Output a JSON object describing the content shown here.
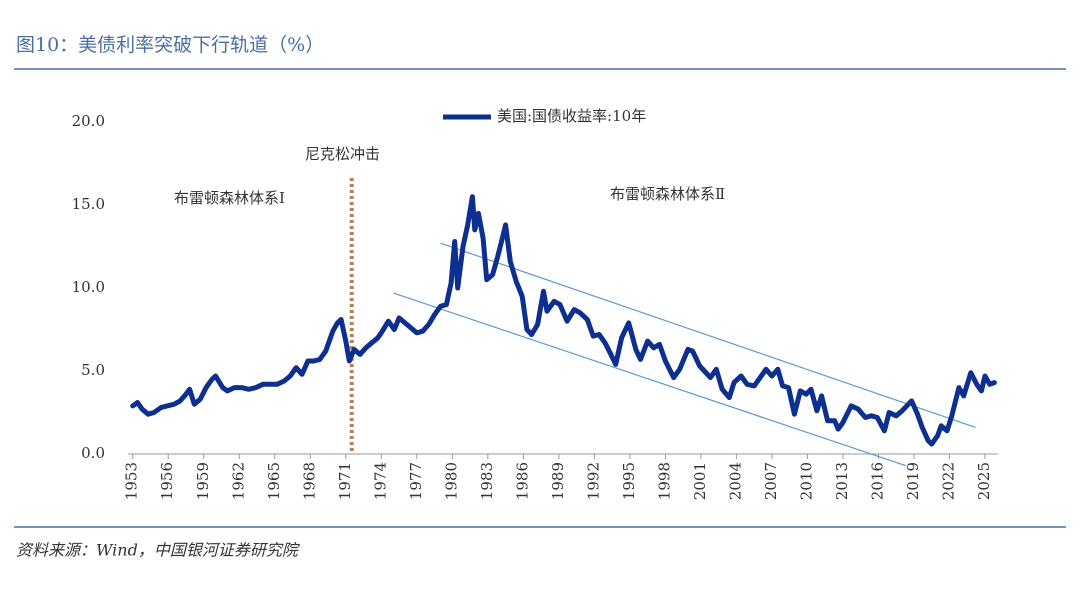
{
  "page": {
    "title": "图10：美债利率突破下行轨道（%）",
    "source": "资料来源：Wind，中国银河证券研究院"
  },
  "chart_data": {
    "type": "line",
    "series": [
      {
        "name": "美国:国债收益率:10年",
        "color": "#0d2f8f",
        "x": [
          1953.0,
          1953.4,
          1953.8,
          1954.3,
          1954.8,
          1955.4,
          1955.9,
          1956.5,
          1957.0,
          1957.5,
          1957.8,
          1958.2,
          1958.7,
          1959.2,
          1959.7,
          1960.0,
          1960.6,
          1961.0,
          1961.6,
          1962.2,
          1962.8,
          1963.4,
          1964.0,
          1964.6,
          1965.2,
          1965.8,
          1966.3,
          1966.8,
          1967.3,
          1967.8,
          1968.3,
          1968.8,
          1969.3,
          1969.9,
          1970.3,
          1970.6,
          1971.0,
          1971.3,
          1971.7,
          1972.2,
          1972.7,
          1973.2,
          1973.7,
          1974.0,
          1974.6,
          1975.1,
          1975.5,
          1976.0,
          1976.5,
          1977.0,
          1977.5,
          1978.0,
          1978.5,
          1979.0,
          1979.5,
          1979.9,
          1980.2,
          1980.45,
          1980.9,
          1981.3,
          1981.7,
          1981.9,
          1982.2,
          1982.6,
          1982.9,
          1983.4,
          1983.8,
          1984.3,
          1984.5,
          1984.9,
          1985.4,
          1985.9,
          1986.3,
          1986.7,
          1987.2,
          1987.7,
          1988.0,
          1988.6,
          1989.1,
          1989.7,
          1990.3,
          1990.8,
          1991.4,
          1991.9,
          1992.4,
          1992.9,
          1993.4,
          1993.8,
          1994.3,
          1994.9,
          1995.5,
          1995.9,
          1996.5,
          1997.0,
          1997.5,
          1998.0,
          1998.7,
          1999.2,
          1999.9,
          2000.3,
          2000.9,
          2001.3,
          2001.8,
          2002.3,
          2002.8,
          2003.4,
          2003.8,
          2004.4,
          2004.9,
          2005.5,
          2005.9,
          2006.5,
          2007.0,
          2007.5,
          2007.9,
          2008.4,
          2008.9,
          2009.4,
          2009.9,
          2010.3,
          2010.8,
          2011.2,
          2011.7,
          2012.3,
          2012.6,
          2013.0,
          2013.7,
          2014.3,
          2014.9,
          2015.4,
          2015.9,
          2016.5,
          2016.9,
          2017.5,
          2018.0,
          2018.8,
          2019.3,
          2019.7,
          2020.2,
          2020.5,
          2021.0,
          2021.3,
          2021.8,
          2022.2,
          2022.8,
          2023.2,
          2023.8,
          2024.3,
          2024.7,
          2025.0,
          2025.4,
          2025.8
        ],
        "values": [
          2.9,
          3.1,
          2.7,
          2.4,
          2.5,
          2.8,
          2.9,
          3.0,
          3.2,
          3.6,
          3.9,
          3.0,
          3.3,
          4.0,
          4.5,
          4.7,
          4.0,
          3.8,
          4.0,
          4.0,
          3.9,
          4.0,
          4.2,
          4.2,
          4.2,
          4.4,
          4.7,
          5.2,
          4.8,
          5.6,
          5.6,
          5.7,
          6.2,
          7.4,
          7.9,
          8.1,
          6.8,
          5.6,
          6.3,
          6.0,
          6.4,
          6.7,
          7.0,
          7.3,
          8.0,
          7.5,
          8.2,
          7.9,
          7.6,
          7.3,
          7.4,
          7.8,
          8.4,
          8.9,
          9.0,
          10.3,
          12.8,
          10.0,
          12.5,
          13.8,
          15.5,
          13.5,
          14.5,
          13.0,
          10.5,
          10.8,
          11.8,
          13.2,
          13.8,
          11.6,
          10.4,
          9.5,
          7.5,
          7.2,
          7.8,
          9.8,
          8.6,
          9.2,
          9.0,
          8.0,
          8.7,
          8.5,
          8.1,
          7.1,
          7.2,
          6.7,
          6.0,
          5.4,
          7.0,
          7.9,
          6.3,
          5.7,
          6.8,
          6.4,
          6.6,
          5.6,
          4.6,
          5.1,
          6.3,
          6.2,
          5.3,
          5.0,
          4.6,
          5.1,
          3.9,
          3.4,
          4.3,
          4.7,
          4.2,
          4.1,
          4.5,
          5.1,
          4.7,
          5.1,
          4.1,
          4.0,
          2.4,
          3.8,
          3.6,
          3.9,
          2.6,
          3.5,
          2.0,
          2.0,
          1.5,
          1.9,
          2.9,
          2.7,
          2.2,
          2.3,
          2.2,
          1.4,
          2.5,
          2.3,
          2.6,
          3.2,
          2.4,
          1.6,
          0.8,
          0.6,
          1.1,
          1.7,
          1.4,
          2.3,
          4.0,
          3.5,
          4.9,
          4.2,
          3.8,
          4.7,
          4.2,
          4.3
        ]
      }
    ],
    "trend_lines": [
      {
        "color": "#5b9bd5",
        "x": [
          1979.0,
          2024.2
        ],
        "values": [
          12.7,
          1.6
        ]
      },
      {
        "color": "#5b9bd5",
        "x": [
          1975.0,
          2018.3
        ],
        "values": [
          9.7,
          -0.7
        ]
      }
    ],
    "annotations": [
      {
        "text": "尼克松冲击",
        "x": 1971.5,
        "color": "#b5835a"
      },
      {
        "text": "布雷顿森林体系Ⅰ"
      },
      {
        "text": "布雷顿森林体系Ⅱ"
      }
    ],
    "xlim": [
      1952.6,
      2026.1
    ],
    "xticks": [
      1953,
      1956,
      1959,
      1962,
      1965,
      1968,
      1971,
      1974,
      1977,
      1980,
      1983,
      1986,
      1989,
      1992,
      1995,
      1998,
      2001,
      2004,
      2007,
      2010,
      2013,
      2016,
      2019,
      2022,
      2025
    ],
    "ylim": [
      0,
      20
    ],
    "yticks": [
      {
        "value": 0,
        "label": "0.0"
      },
      {
        "value": 5,
        "label": "5.0"
      },
      {
        "value": 10,
        "label": "10.0"
      },
      {
        "value": 15,
        "label": "15.0"
      },
      {
        "value": 20,
        "label": "20.0"
      }
    ],
    "legend": "top"
  }
}
